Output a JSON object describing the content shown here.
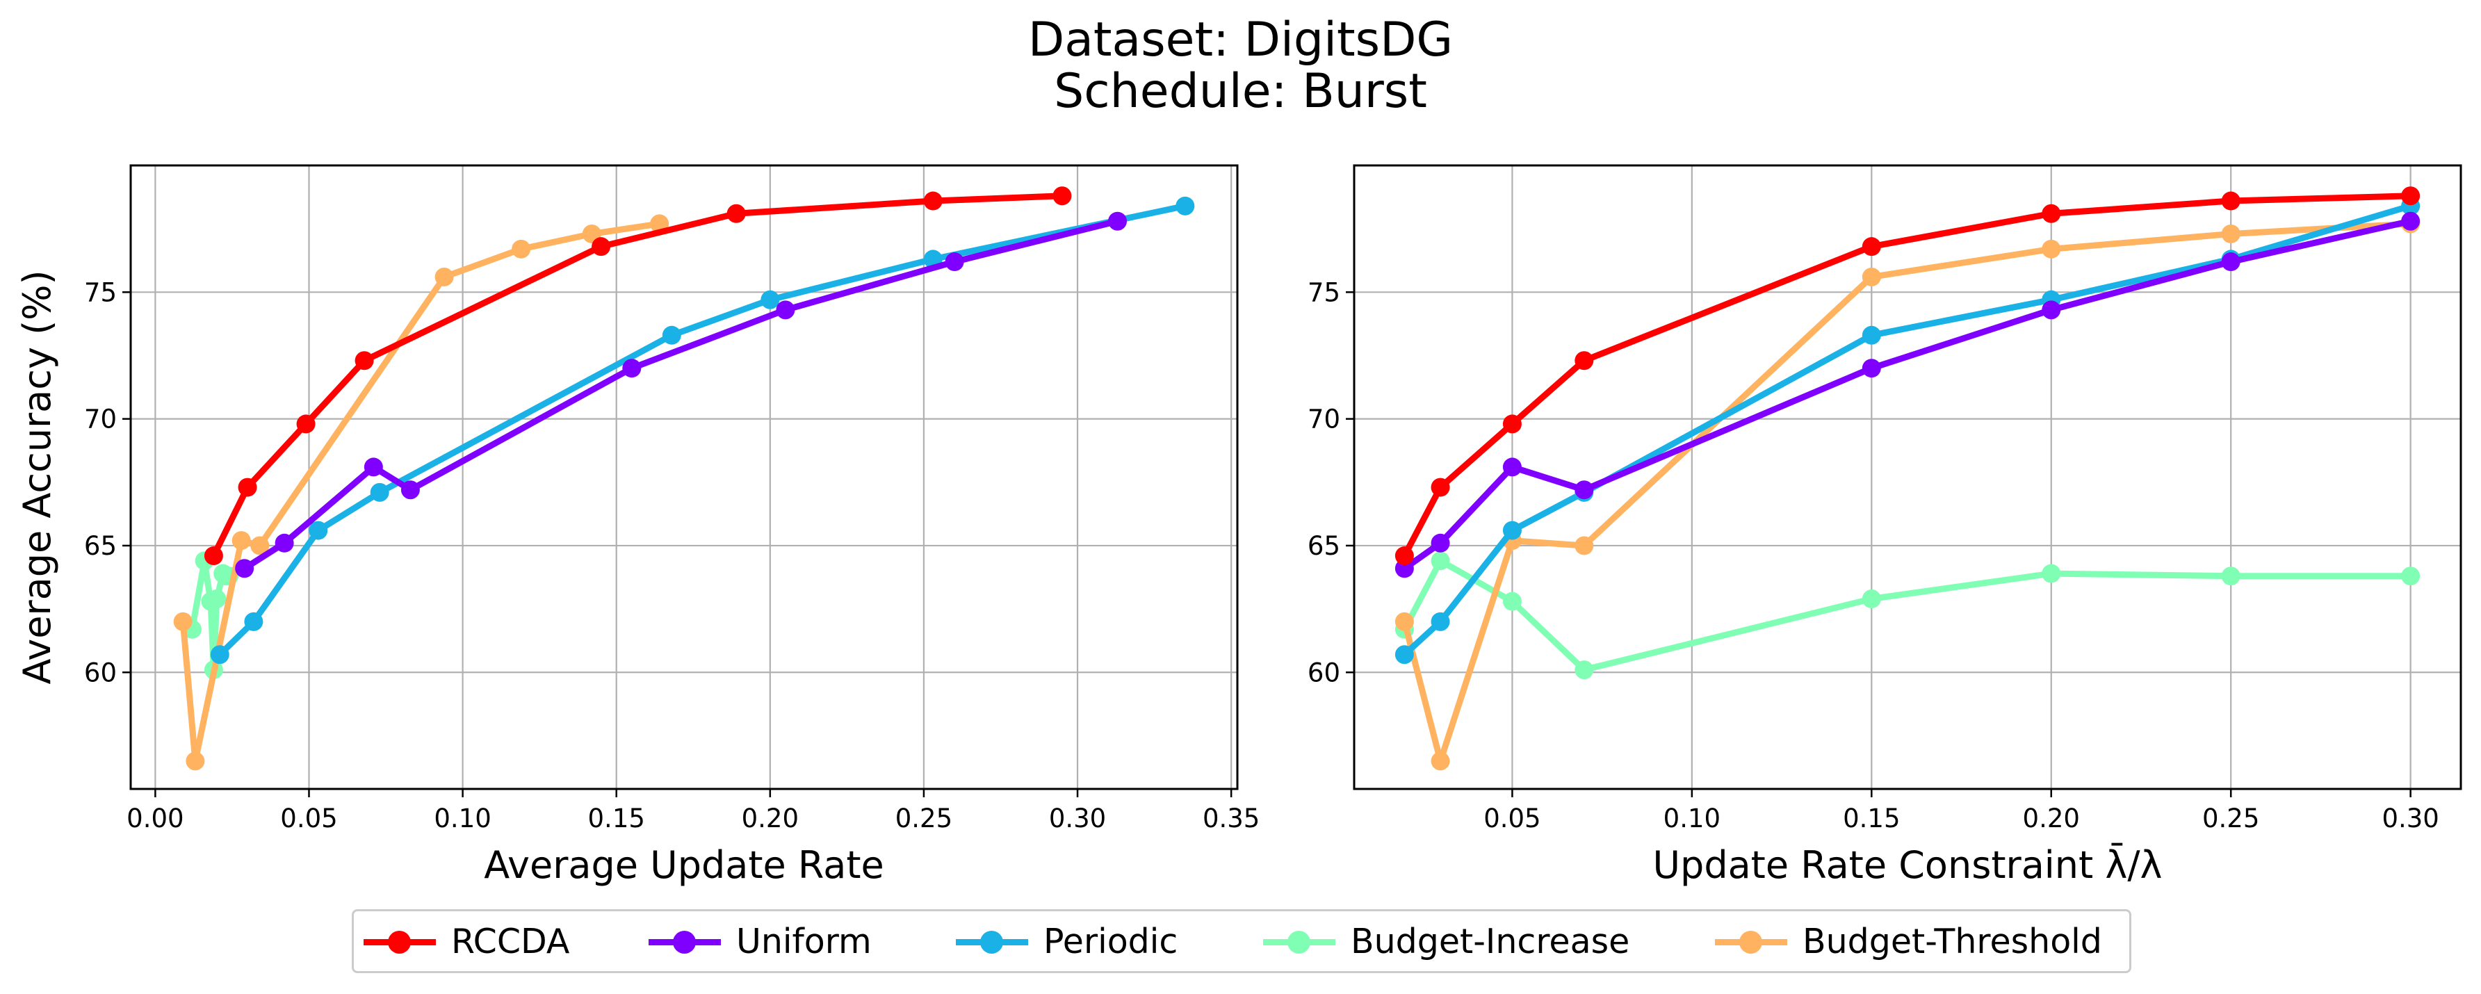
{
  "titles": [
    "Dataset: DigitsDG",
    "Schedule: Burst"
  ],
  "colors": {
    "RCCDA": "#ff0000",
    "Uniform": "#8000ff",
    "Periodic": "#1ab2e6",
    "Budget-Increase": "#80ffb4",
    "Budget-Threshold": "#ffb360"
  },
  "legend": [
    "RCCDA",
    "Uniform",
    "Periodic",
    "Budget-Increase",
    "Budget-Threshold"
  ],
  "chart_data": [
    {
      "type": "line",
      "xlabel": "Average Update Rate",
      "ylabel": "Average Accuracy (%)",
      "xlim": [
        -0.008,
        0.352
      ],
      "ylim": [
        55.4,
        80.0
      ],
      "xticks": [
        "0.00",
        "0.05",
        "0.10",
        "0.15",
        "0.20",
        "0.25",
        "0.30",
        "0.35"
      ],
      "xtick_values": [
        0.0,
        0.05,
        0.1,
        0.15,
        0.2,
        0.25,
        0.3,
        0.35
      ],
      "yticks": [
        "60",
        "65",
        "70",
        "75"
      ],
      "ytick_values": [
        60,
        65,
        70,
        75
      ],
      "grid": true,
      "series": [
        {
          "name": "RCCDA",
          "points": [
            [
              0.019,
              64.6
            ],
            [
              0.03,
              67.3
            ],
            [
              0.049,
              69.8
            ],
            [
              0.068,
              72.3
            ],
            [
              0.145,
              76.8
            ],
            [
              0.189,
              78.1
            ],
            [
              0.253,
              78.6
            ],
            [
              0.295,
              78.8
            ]
          ]
        },
        {
          "name": "Uniform",
          "points": [
            [
              0.029,
              64.1
            ],
            [
              0.042,
              65.1
            ],
            [
              0.071,
              68.1
            ],
            [
              0.083,
              67.2
            ],
            [
              0.155,
              72.0
            ],
            [
              0.205,
              74.3
            ],
            [
              0.26,
              76.2
            ],
            [
              0.313,
              77.8
            ]
          ]
        },
        {
          "name": "Periodic",
          "points": [
            [
              0.021,
              60.7
            ],
            [
              0.032,
              62.0
            ],
            [
              0.053,
              65.6
            ],
            [
              0.073,
              67.1
            ],
            [
              0.168,
              73.3
            ],
            [
              0.2,
              74.7
            ],
            [
              0.253,
              76.3
            ],
            [
              0.335,
              78.4
            ]
          ]
        },
        {
          "name": "Budget-Increase",
          "points": [
            [
              0.012,
              61.7
            ],
            [
              0.016,
              64.4
            ],
            [
              0.018,
              62.8
            ],
            [
              0.019,
              60.1
            ],
            [
              0.02,
              62.9
            ],
            [
              0.022,
              63.9
            ],
            [
              0.023,
              63.8
            ],
            [
              0.024,
              63.8
            ]
          ]
        },
        {
          "name": "Budget-Threshold",
          "points": [
            [
              0.009,
              62.0
            ],
            [
              0.013,
              56.5
            ],
            [
              0.028,
              65.2
            ],
            [
              0.034,
              65.0
            ],
            [
              0.094,
              75.6
            ],
            [
              0.119,
              76.7
            ],
            [
              0.142,
              77.3
            ],
            [
              0.164,
              77.7
            ]
          ]
        }
      ]
    },
    {
      "type": "line",
      "xlabel": "Update Rate Constraint λ̄/λ",
      "ylabel": "",
      "xlim": [
        0.006,
        0.314
      ],
      "ylim": [
        55.4,
        80.0
      ],
      "xticks": [
        "0.05",
        "0.10",
        "0.15",
        "0.20",
        "0.25",
        "0.30"
      ],
      "xtick_values": [
        0.05,
        0.1,
        0.15,
        0.2,
        0.25,
        0.3
      ],
      "yticks": [
        "60",
        "65",
        "70",
        "75"
      ],
      "ytick_values": [
        60,
        65,
        70,
        75
      ],
      "grid": true,
      "series": [
        {
          "name": "RCCDA",
          "points": [
            [
              0.02,
              64.6
            ],
            [
              0.03,
              67.3
            ],
            [
              0.05,
              69.8
            ],
            [
              0.07,
              72.3
            ],
            [
              0.15,
              76.8
            ],
            [
              0.2,
              78.1
            ],
            [
              0.25,
              78.6
            ],
            [
              0.3,
              78.8
            ]
          ]
        },
        {
          "name": "Uniform",
          "points": [
            [
              0.02,
              64.1
            ],
            [
              0.03,
              65.1
            ],
            [
              0.05,
              68.1
            ],
            [
              0.07,
              67.2
            ],
            [
              0.15,
              72.0
            ],
            [
              0.2,
              74.3
            ],
            [
              0.25,
              76.2
            ],
            [
              0.3,
              77.8
            ]
          ]
        },
        {
          "name": "Periodic",
          "points": [
            [
              0.02,
              60.7
            ],
            [
              0.03,
              62.0
            ],
            [
              0.05,
              65.6
            ],
            [
              0.07,
              67.1
            ],
            [
              0.15,
              73.3
            ],
            [
              0.2,
              74.7
            ],
            [
              0.25,
              76.3
            ],
            [
              0.3,
              78.4
            ]
          ]
        },
        {
          "name": "Budget-Increase",
          "points": [
            [
              0.02,
              61.7
            ],
            [
              0.03,
              64.4
            ],
            [
              0.05,
              62.8
            ],
            [
              0.07,
              60.1
            ],
            [
              0.15,
              62.9
            ],
            [
              0.2,
              63.9
            ],
            [
              0.25,
              63.8
            ],
            [
              0.3,
              63.8
            ]
          ]
        },
        {
          "name": "Budget-Threshold",
          "points": [
            [
              0.02,
              62.0
            ],
            [
              0.03,
              56.5
            ],
            [
              0.05,
              65.2
            ],
            [
              0.07,
              65.0
            ],
            [
              0.15,
              75.6
            ],
            [
              0.2,
              76.7
            ],
            [
              0.25,
              77.3
            ],
            [
              0.3,
              77.7
            ]
          ]
        }
      ]
    }
  ]
}
